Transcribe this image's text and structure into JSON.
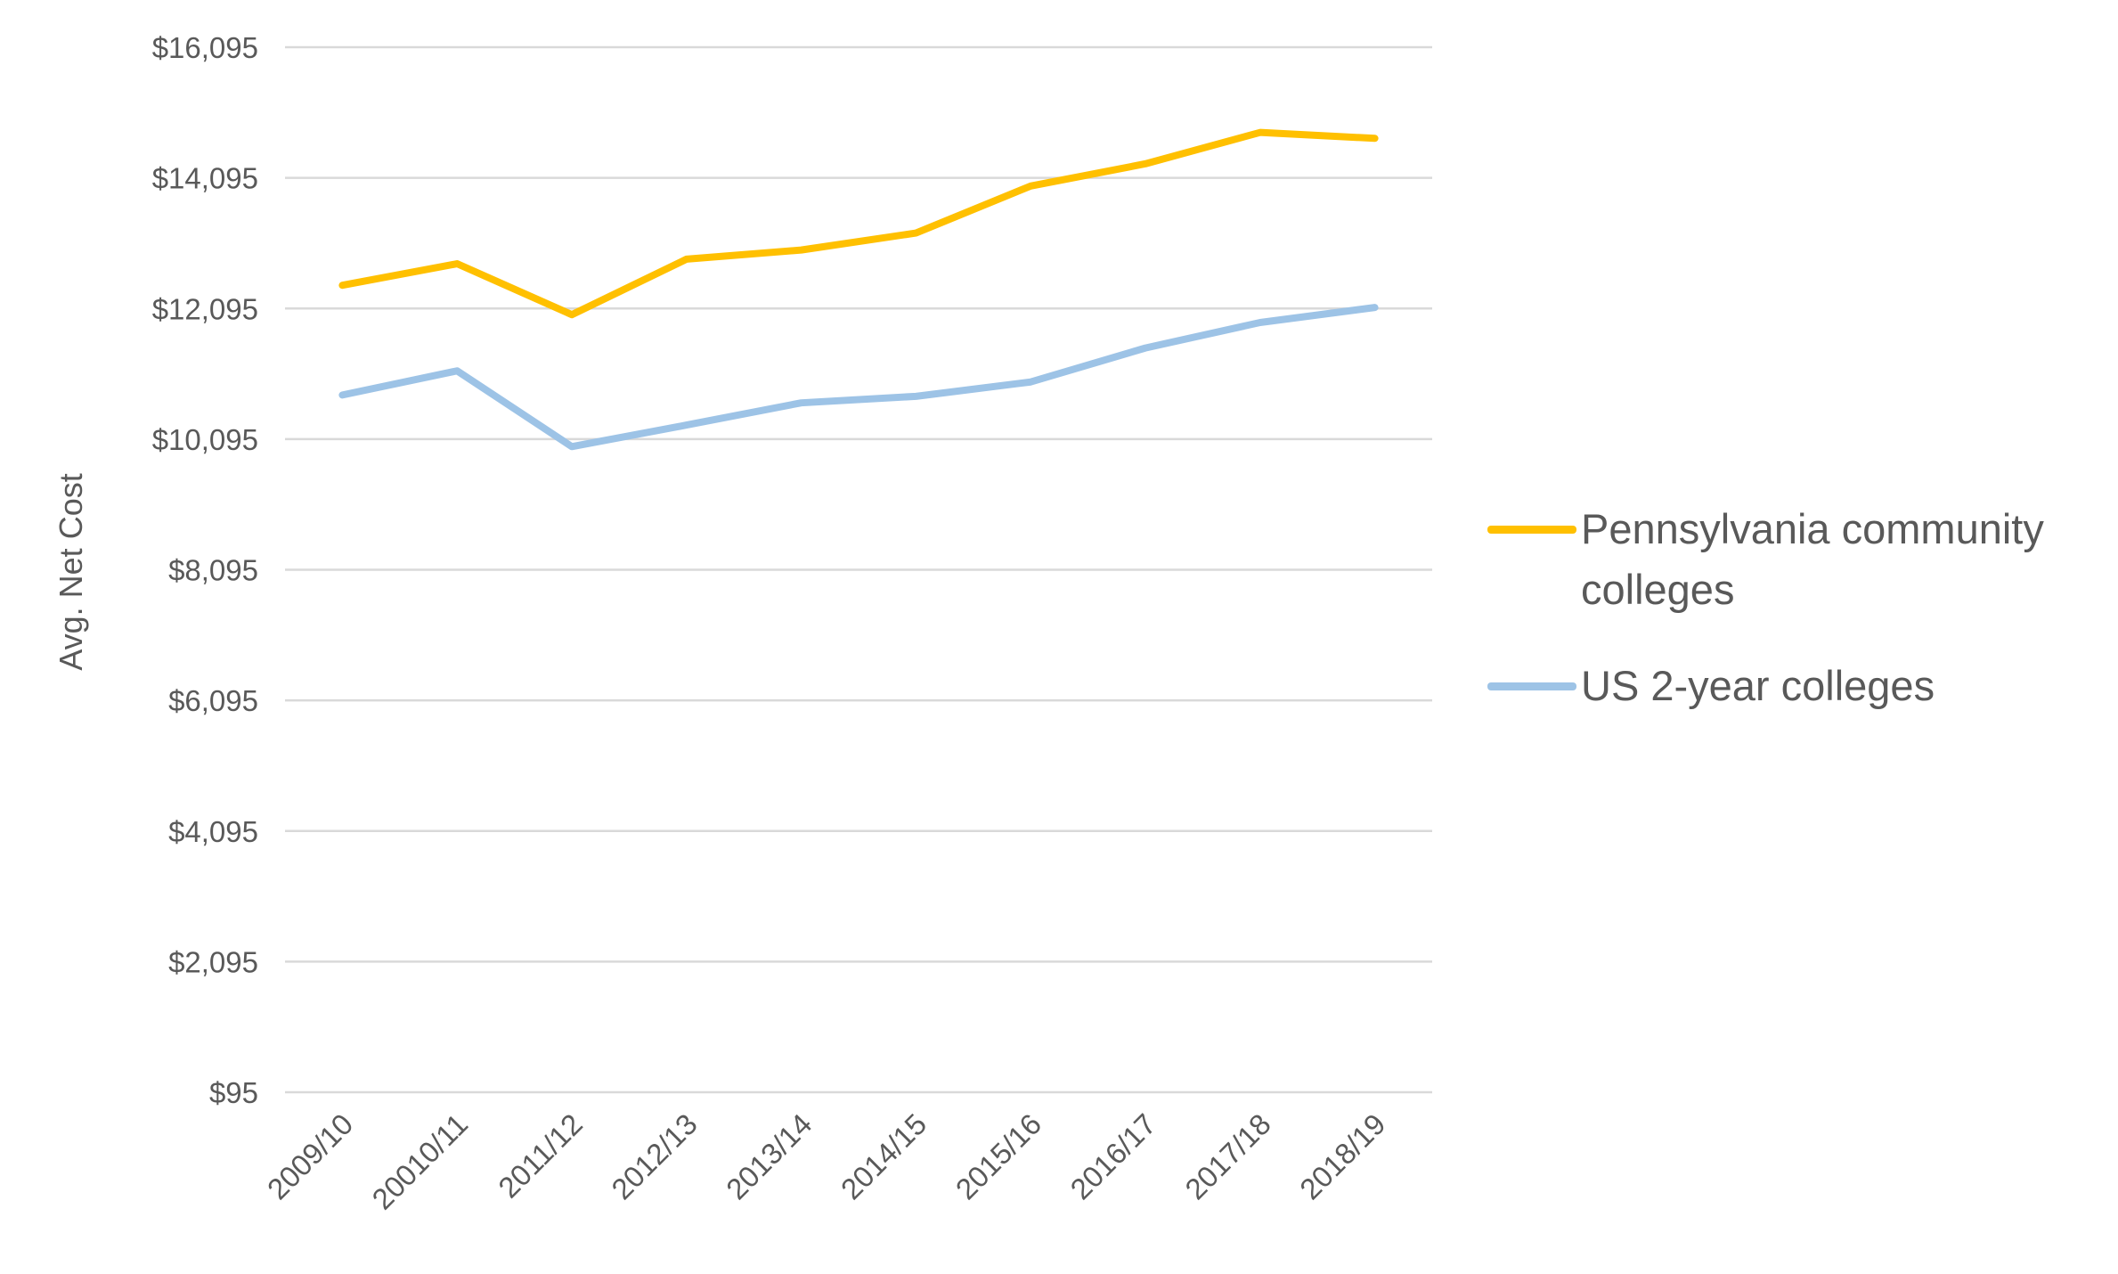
{
  "chart_data": {
    "type": "line",
    "title": "",
    "xlabel": "",
    "ylabel": "Avg. Net Cost",
    "categories": [
      "2009/10",
      "20010/11",
      "2011/12",
      "2012/13",
      "2013/14",
      "2014/15",
      "2015/16",
      "2016/17",
      "2017/18",
      "2018/19"
    ],
    "y_ticks": [
      95,
      2095,
      4095,
      6095,
      8095,
      10095,
      12095,
      14095,
      16095
    ],
    "y_tick_labels": [
      "$95",
      "$2,095",
      "$4,095",
      "$6,095",
      "$8,095",
      "$10,095",
      "$12,095",
      "$14,095",
      "$16,095"
    ],
    "ylim": [
      95,
      16095
    ],
    "grid": true,
    "legend_position": "right",
    "series": [
      {
        "name": "Pennsylvania community colleges",
        "color": "#FFC000",
        "values": [
          12450,
          12780,
          12000,
          12850,
          12990,
          13250,
          13970,
          14310,
          14790,
          14700
        ]
      },
      {
        "name": "US 2-year colleges",
        "color": "#9DC3E6",
        "values": [
          10770,
          11140,
          9980,
          10310,
          10650,
          10750,
          10970,
          11490,
          11880,
          12110
        ]
      }
    ]
  }
}
